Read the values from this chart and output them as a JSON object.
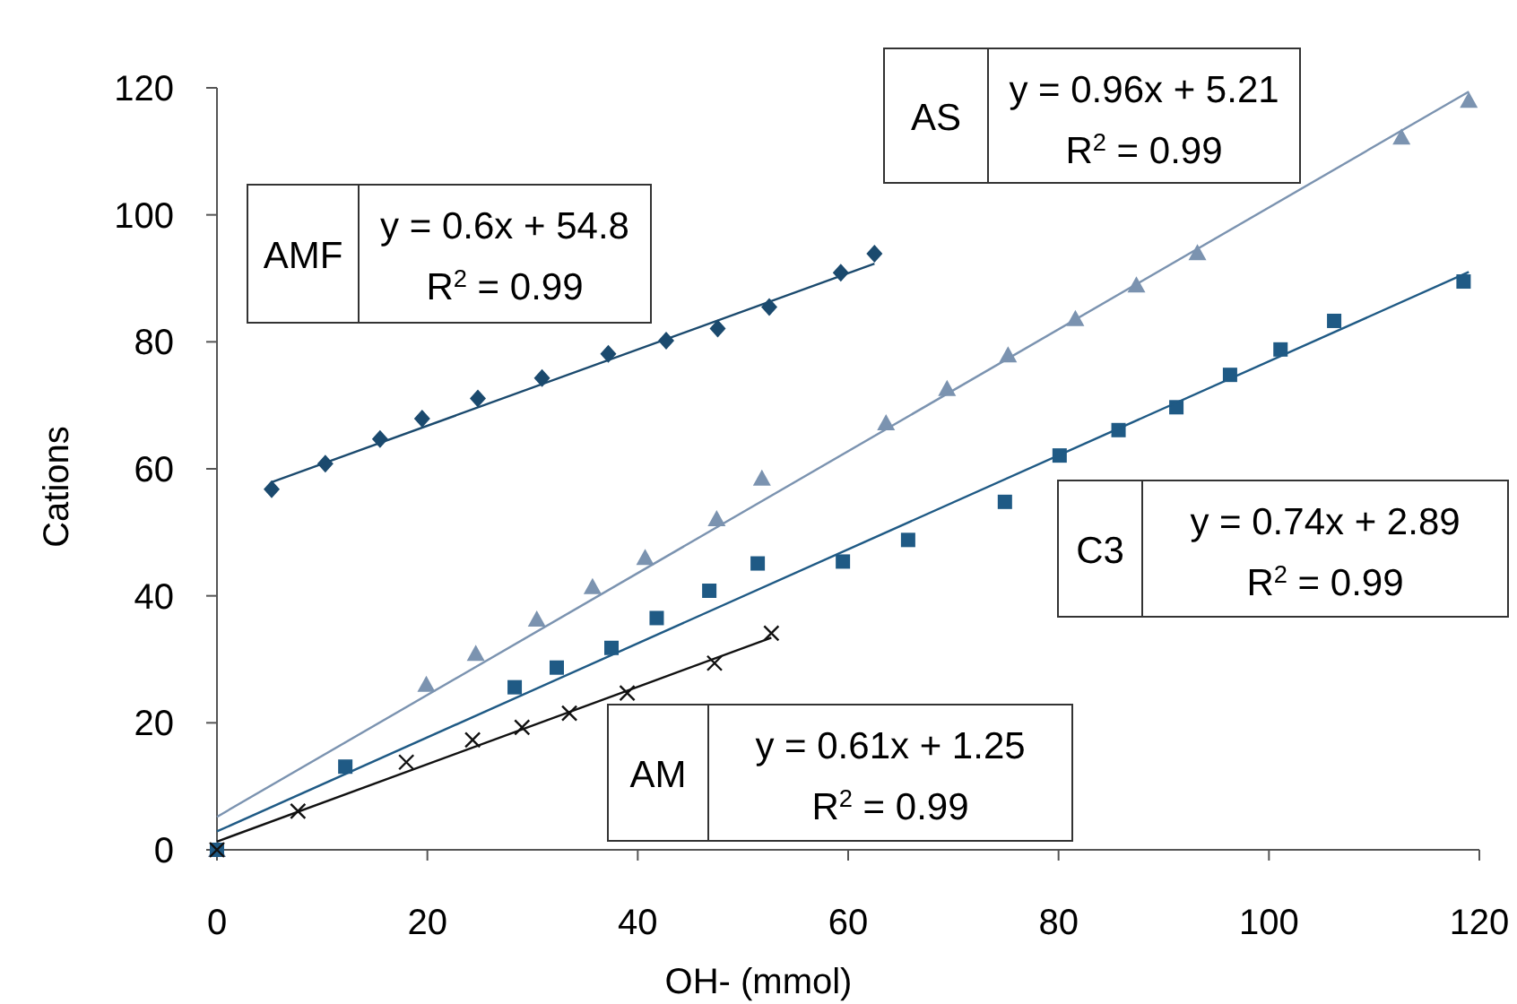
{
  "chart_data": {
    "type": "scatter",
    "xlabel": "OH- (mmol)",
    "ylabel": "Cations",
    "xlim": [
      0,
      120
    ],
    "xticks": [
      0,
      20,
      40,
      60,
      80,
      100,
      120
    ],
    "ylim": [
      0,
      120
    ],
    "yticks": [
      0,
      20,
      40,
      60,
      80,
      100,
      120
    ],
    "grid": false,
    "series": [
      {
        "type": "scatter",
        "marker": "diamond",
        "color": "#1b4a6e",
        "x": [
          5.2,
          10.3,
          15.5,
          19.5,
          24.8,
          30.9,
          37.2,
          42.7,
          47.6,
          52.5,
          59.3,
          62.5
        ],
        "values": [
          56.8,
          60.8,
          64.7,
          67.9,
          71.1,
          74.3,
          78.1,
          80.2,
          82.1,
          85.5,
          90.9,
          93.9
        ]
      },
      {
        "type": "line",
        "marker": "none",
        "color": "#1b4a6e",
        "x": [
          5.2,
          62.5
        ],
        "values": [
          57.9,
          92.3
        ]
      },
      {
        "type": "scatter",
        "marker": "triangle",
        "color": "#7b93b0",
        "x": [
          0,
          19.9,
          24.6,
          30.4,
          35.7,
          40.7,
          47.5,
          51.8,
          63.6,
          69.4,
          75.2,
          81.6,
          87.4,
          93.2,
          112.6,
          119
        ],
        "values": [
          0,
          26,
          30.9,
          36.3,
          41.4,
          46,
          52.1,
          58.5,
          67.2,
          72.6,
          77.9,
          83.6,
          88.9,
          94,
          112.2,
          118
        ]
      },
      {
        "type": "line",
        "marker": "none",
        "color": "#7b93b0",
        "x": [
          0,
          119
        ],
        "values": [
          5.2,
          119.4
        ]
      },
      {
        "type": "scatter",
        "marker": "square",
        "color": "#1f5a85",
        "x": [
          0,
          12.2,
          28.3,
          32.3,
          37.5,
          41.8,
          46.8,
          51.4,
          59.5,
          65.7,
          74.9,
          80.1,
          85.7,
          91.2,
          96.3,
          101.1,
          106.2,
          118.5
        ],
        "values": [
          0,
          13.1,
          25.6,
          28.7,
          31.8,
          36.5,
          40.8,
          45.1,
          45.4,
          48.8,
          54.8,
          62.1,
          66.1,
          69.7,
          74.8,
          78.8,
          83.3,
          89.5
        ]
      },
      {
        "type": "line",
        "marker": "none",
        "color": "#1f5a85",
        "x": [
          0,
          119
        ],
        "values": [
          2.9,
          91
        ]
      },
      {
        "type": "scatter",
        "marker": "cross",
        "color": "#111111",
        "x": [
          0,
          7.7,
          18,
          24.3,
          29,
          33.5,
          39,
          47.3,
          52.7
        ],
        "values": [
          0,
          6.1,
          13.8,
          17.3,
          19.3,
          21.5,
          24.7,
          29.4,
          34.1
        ]
      },
      {
        "type": "line",
        "marker": "none",
        "color": "#111111",
        "x": [
          0,
          52.7
        ],
        "values": [
          1.3,
          33.4
        ]
      }
    ],
    "annotations": [
      "AMF",
      "y = 0.6x + 54.8",
      "R$^{2}$ = 0.99",
      "AS",
      "y = 0.96x + 5.21",
      "R$^{2}$ = 0.99",
      "C3",
      "y = 0.74x + 2.89",
      "R$^{2}$ = 0.99",
      "AM",
      "y = 0.61x + 1.25",
      "R$^{2}$ = 0.99"
    ]
  }
}
